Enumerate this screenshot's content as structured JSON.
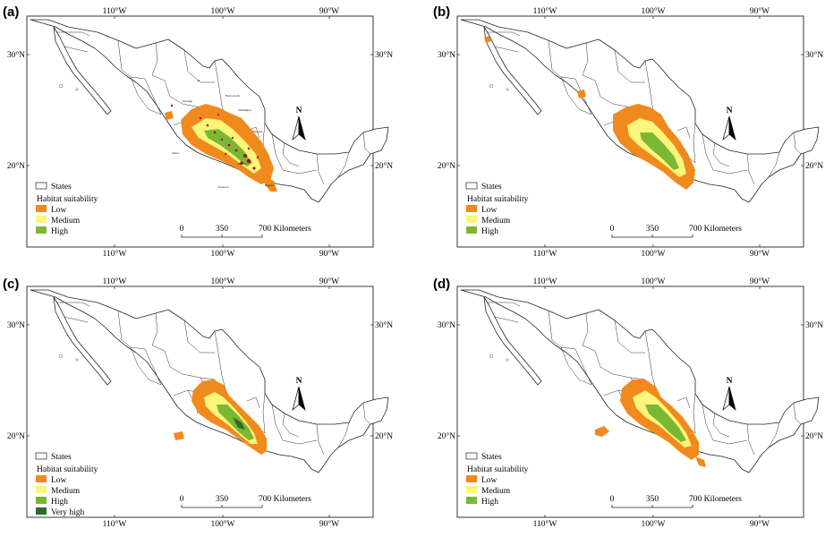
{
  "panels": [
    {
      "label": "(a)",
      "legend": {
        "states": "States",
        "title": "Habitat suitability",
        "classes": [
          {
            "name": "Low",
            "color": "#f08a1c"
          },
          {
            "name": "Medium",
            "color": "#fbf57a"
          },
          {
            "name": "High",
            "color": "#7ab834"
          }
        ]
      },
      "occurrences": true,
      "state_names": [
        "Durango",
        "Nuevo León",
        "Tamaulipas",
        "Jalisco",
        "Guerrero",
        "Oaxaca",
        "Veracruz",
        "Puebla"
      ]
    },
    {
      "label": "(b)",
      "legend": {
        "states": "States",
        "title": "Habitat suitability",
        "classes": [
          {
            "name": "Low",
            "color": "#f08a1c"
          },
          {
            "name": "Medium",
            "color": "#fbf57a"
          },
          {
            "name": "High",
            "color": "#7ab834"
          }
        ]
      },
      "occurrences": false
    },
    {
      "label": "(c)",
      "legend": {
        "states": "States",
        "title": "Habitat suitability",
        "classes": [
          {
            "name": "Low",
            "color": "#f08a1c"
          },
          {
            "name": "Medium",
            "color": "#fbf57a"
          },
          {
            "name": "High",
            "color": "#7ab834"
          },
          {
            "name": "Very high",
            "color": "#2f6b2a"
          }
        ]
      },
      "occurrences": false
    },
    {
      "label": "(d)",
      "legend": {
        "states": "States",
        "title": "Habitat suitability",
        "classes": [
          {
            "name": "Low",
            "color": "#f08a1c"
          },
          {
            "name": "Medium",
            "color": "#fbf57a"
          },
          {
            "name": "High",
            "color": "#7ab834"
          }
        ]
      },
      "occurrences": false
    }
  ],
  "axes": {
    "longitude_ticks": [
      "110°W",
      "100°W",
      "90°W"
    ],
    "latitude_ticks": [
      "30°N",
      "20°N"
    ]
  },
  "scalebar": {
    "labels": [
      "0",
      "350",
      "700 Kilometers"
    ]
  },
  "north_arrow": "N"
}
